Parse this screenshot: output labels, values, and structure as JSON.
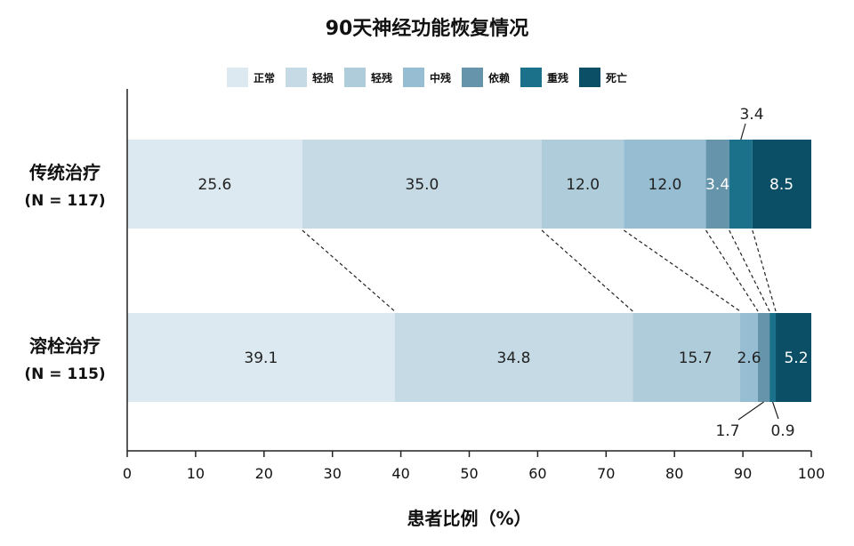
{
  "chart_data": {
    "type": "bar",
    "orientation": "horizontal",
    "stacked": true,
    "title": "90天神经功能恢复情况",
    "xlabel": "患者比例（%）",
    "xlim": [
      0,
      100
    ],
    "xticks": [
      0,
      10,
      20,
      30,
      40,
      50,
      60,
      70,
      80,
      90,
      100
    ],
    "legend_position": "top-center",
    "grid": false,
    "categories": [
      {
        "name": "传统治疗",
        "n_label": "(N = 117)"
      },
      {
        "name": "溶栓治疗",
        "n_label": "(N = 115)"
      }
    ],
    "series": [
      {
        "name": "正常",
        "color": "#dde9f0",
        "values": [
          25.6,
          39.1
        ]
      },
      {
        "name": "轻损",
        "color": "#c5dae5",
        "values": [
          35.0,
          34.8
        ]
      },
      {
        "name": "轻残",
        "color": "#aeccda",
        "values": [
          12.0,
          15.7
        ]
      },
      {
        "name": "中残",
        "color": "#96bdd1",
        "values": [
          12.0,
          2.6
        ]
      },
      {
        "name": "依赖",
        "color": "#6594ab",
        "values": [
          3.4,
          1.7
        ]
      },
      {
        "name": "重残",
        "color": "#1a7189",
        "values": [
          3.4,
          0.9
        ]
      },
      {
        "name": "死亡",
        "color": "#0b4f66",
        "values": [
          8.5,
          5.2
        ]
      }
    ],
    "data_labels": [
      [
        "25.6",
        "35.0",
        "12.0",
        "12.0",
        "3.4",
        "3.4",
        "8.5"
      ],
      [
        "39.1",
        "34.8",
        "15.7",
        "2.6",
        "1.7",
        "0.9",
        "5.2"
      ]
    ]
  }
}
